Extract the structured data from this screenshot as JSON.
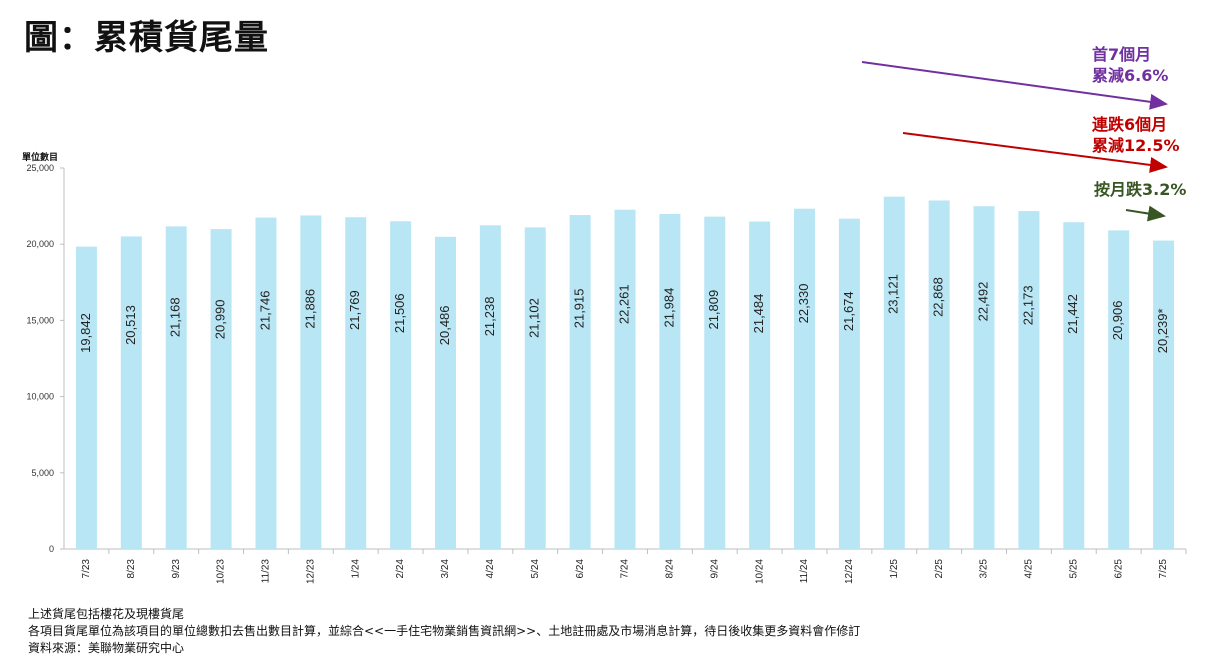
{
  "title": "圖：累積貨尾量",
  "chart_data": {
    "type": "bar",
    "title": "圖：累積貨尾量",
    "ylabel": "單位數目",
    "xlabel": "",
    "ylim": [
      0,
      25000
    ],
    "yticks": [
      "0",
      "5,000",
      "10,000",
      "15,000",
      "20,000",
      "25,000"
    ],
    "grid": false,
    "bar_color": "#b9e6f5",
    "categories": [
      "7/23",
      "8/23",
      "9/23",
      "10/23",
      "11/23",
      "12/23",
      "1/24",
      "2/24",
      "3/24",
      "4/24",
      "5/24",
      "6/24",
      "7/24",
      "8/24",
      "9/24",
      "10/24",
      "11/24",
      "12/24",
      "1/25",
      "2/25",
      "3/25",
      "4/25",
      "5/25",
      "6/25",
      "7/25"
    ],
    "values": [
      19842,
      20513,
      21168,
      20990,
      21746,
      21886,
      21769,
      21506,
      20486,
      21238,
      21102,
      21915,
      22261,
      21984,
      21809,
      21484,
      22330,
      21674,
      23121,
      22868,
      22492,
      22173,
      21442,
      20906,
      20239
    ],
    "data_labels": [
      "19,842",
      "20,513",
      "21,168",
      "20,990",
      "21,746",
      "21,886",
      "21,769",
      "21,506",
      "20,486",
      "21,238",
      "21,102",
      "21,915",
      "22,261",
      "21,984",
      "21,809",
      "21,484",
      "22,330",
      "21,674",
      "23,121",
      "22,868",
      "22,492",
      "22,173",
      "21,442",
      "20,906",
      "20,239*"
    ]
  },
  "annotations": [
    {
      "line1": "首7個月",
      "line2": "累減6.6%",
      "color": "#7030a0"
    },
    {
      "line1": "連跌6個月",
      "line2": "累減12.5%",
      "color": "#c00000"
    },
    {
      "line1": "按月跌3.2%",
      "line2": "",
      "color": "#375623"
    }
  ],
  "notes": [
    "上述貨尾包括樓花及現樓貨尾",
    "各項目貨尾單位為該項目的單位總數扣去售出數目計算，並綜合<<一手住宅物業銷售資訊網>>、土地註冊處及市場消息計算，待日後收集更多資料會作修訂",
    "資料來源：美聯物業研究中心"
  ]
}
